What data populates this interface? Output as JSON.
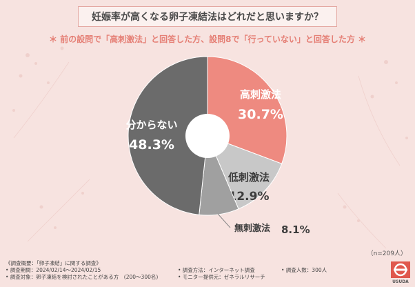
{
  "title": "妊娠率が高くなる卵子凍結法はどれだと思いますか？",
  "subtitle": "＊ 前の設問で「高刺激法」と回答した方、設問8で「行っていない」と回答した方 ＊",
  "sample_size": "（n=209人）",
  "chart_data": {
    "type": "pie",
    "donut": true,
    "title": "妊娠率が高くなる卵子凍結法はどれだと思いますか？",
    "slices": [
      {
        "label": "高刺激法",
        "value": 30.7,
        "value_label": "30.7%",
        "color": "#ee8a80"
      },
      {
        "label": "低刺激法",
        "value": 12.9,
        "value_label": "12.9%",
        "color": "#c8c8c8"
      },
      {
        "label": "無刺激法",
        "value": 8.1,
        "value_label": "8.1%",
        "color": "#a0a0a0"
      },
      {
        "label": "分からない",
        "value": 48.3,
        "value_label": "48.3%",
        "color": "#6b6b6b"
      }
    ]
  },
  "footer": {
    "overview": "《調査概要：「卵子凍結」に関する調査》",
    "period": "• 調査期間：2024/02/14〜2024/02/15",
    "target": "• 調査対象：卵子凍結を検討されたことがある方　(200〜300名)",
    "method": "• 調査方法：インターネット調査",
    "provider": "• モニター提供元：ゼネラルリサーチ",
    "respondents": "• 調査人数：300人"
  },
  "logo_text": "USUDA"
}
